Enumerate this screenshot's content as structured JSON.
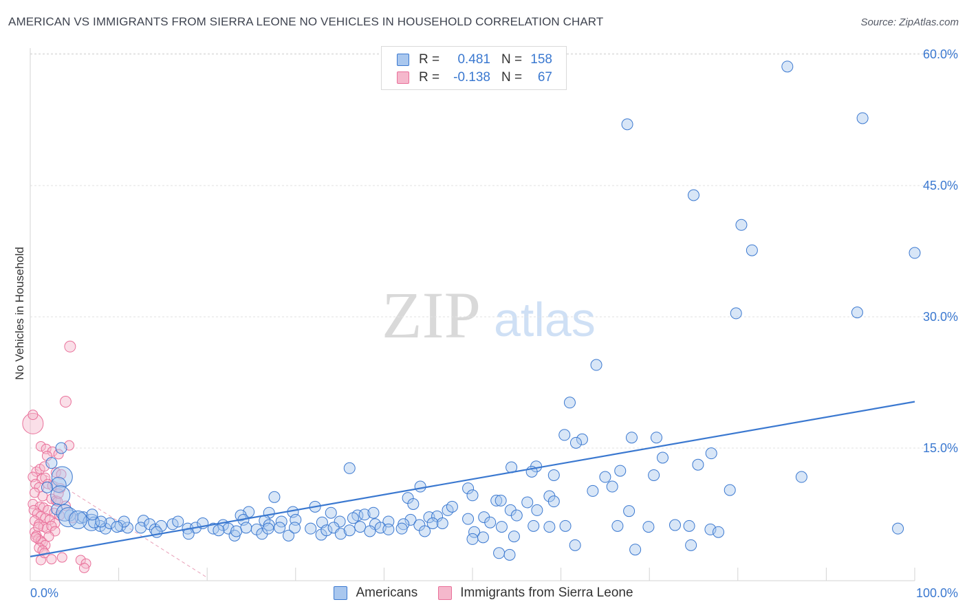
{
  "title": "AMERICAN VS IMMIGRANTS FROM SIERRA LEONE NO VEHICLES IN HOUSEHOLD CORRELATION CHART",
  "source": "Source: ZipAtlas.com",
  "watermark": {
    "zip": "ZIP",
    "atlas": "atlas"
  },
  "colors": {
    "blue": "#3a78d0",
    "blue_fill": "#a9c7ee",
    "pink": "#e96f99",
    "pink_fill": "#f5b8cc"
  },
  "legend": {
    "rows": [
      {
        "r_label": "R =",
        "r_value": "0.481",
        "n_label": "N =",
        "n_value": "158"
      },
      {
        "r_label": "R =",
        "r_value": "-0.138",
        "n_label": "N =",
        "n_value": "67"
      }
    ]
  },
  "bottom_legend": {
    "americans": "Americans",
    "sierra_leone": "Immigrants from Sierra Leone"
  },
  "chart_data": {
    "type": "scatter",
    "ylabel": "No Vehicles in Household",
    "xlabel": "",
    "x_ticks": [
      "0.0%",
      "100.0%"
    ],
    "y_ticks": [
      "15.0%",
      "30.0%",
      "45.0%",
      "60.0%"
    ],
    "xlim": [
      0,
      100
    ],
    "ylim": [
      0,
      63
    ],
    "grid": true,
    "series": [
      {
        "name": "Americans",
        "color": "#3a78d0",
        "trend": {
          "x": [
            0,
            100
          ],
          "y": [
            2.6,
            20.3
          ]
        },
        "points": [
          [
            85.6,
            58.6
          ],
          [
            67.5,
            52.0
          ],
          [
            94.1,
            52.7
          ],
          [
            75.0,
            43.9
          ],
          [
            80.4,
            40.5
          ],
          [
            81.6,
            37.6
          ],
          [
            100.0,
            37.3
          ],
          [
            79.8,
            30.4
          ],
          [
            93.5,
            30.5
          ],
          [
            64.0,
            24.5
          ],
          [
            61.0,
            20.2
          ],
          [
            60.4,
            16.5
          ],
          [
            62.4,
            16.0
          ],
          [
            61.7,
            15.6
          ],
          [
            68.0,
            16.2
          ],
          [
            70.8,
            16.2
          ],
          [
            77.0,
            14.4
          ],
          [
            71.5,
            13.9
          ],
          [
            36.1,
            12.7
          ],
          [
            54.4,
            12.8
          ],
          [
            57.2,
            12.9
          ],
          [
            56.7,
            12.3
          ],
          [
            75.5,
            13.1
          ],
          [
            65.0,
            11.7
          ],
          [
            66.7,
            12.4
          ],
          [
            59.2,
            11.9
          ],
          [
            70.5,
            11.9
          ],
          [
            87.2,
            11.7
          ],
          [
            44.1,
            10.6
          ],
          [
            49.5,
            10.4
          ],
          [
            65.8,
            10.6
          ],
          [
            63.6,
            10.1
          ],
          [
            79.1,
            10.2
          ],
          [
            27.6,
            9.4
          ],
          [
            42.7,
            9.3
          ],
          [
            43.3,
            8.6
          ],
          [
            50.0,
            9.6
          ],
          [
            52.7,
            9.0
          ],
          [
            53.2,
            9.0
          ],
          [
            58.7,
            9.5
          ],
          [
            59.2,
            8.9
          ],
          [
            56.2,
            8.8
          ],
          [
            32.2,
            8.3
          ],
          [
            47.2,
            7.9
          ],
          [
            47.7,
            8.3
          ],
          [
            54.3,
            7.9
          ],
          [
            57.3,
            7.9
          ],
          [
            67.7,
            7.8
          ],
          [
            24.7,
            7.7
          ],
          [
            23.8,
            7.3
          ],
          [
            27.0,
            7.6
          ],
          [
            29.7,
            7.7
          ],
          [
            34.0,
            7.6
          ],
          [
            37.0,
            7.3
          ],
          [
            37.8,
            7.4
          ],
          [
            38.8,
            7.6
          ],
          [
            43.0,
            6.8
          ],
          [
            45.1,
            7.1
          ],
          [
            46.0,
            7.2
          ],
          [
            49.5,
            6.9
          ],
          [
            51.3,
            7.1
          ],
          [
            55.0,
            7.3
          ],
          [
            24.1,
            6.8
          ],
          [
            26.5,
            6.7
          ],
          [
            27.0,
            6.2
          ],
          [
            28.4,
            6.6
          ],
          [
            30.0,
            6.8
          ],
          [
            33.0,
            6.5
          ],
          [
            35.0,
            6.6
          ],
          [
            36.5,
            7.0
          ],
          [
            39.0,
            6.3
          ],
          [
            40.5,
            6.6
          ],
          [
            42.2,
            6.3
          ],
          [
            44.0,
            6.2
          ],
          [
            45.5,
            6.4
          ],
          [
            46.6,
            6.4
          ],
          [
            52.0,
            6.5
          ],
          [
            53.3,
            6.0
          ],
          [
            56.9,
            6.1
          ],
          [
            58.7,
            6.0
          ],
          [
            60.5,
            6.1
          ],
          [
            66.4,
            6.1
          ],
          [
            69.9,
            6.0
          ],
          [
            72.9,
            6.2
          ],
          [
            74.5,
            6.1
          ],
          [
            76.9,
            5.7
          ],
          [
            77.8,
            5.4
          ],
          [
            98.1,
            5.8
          ],
          [
            4.5,
            7.3
          ],
          [
            5.7,
            7.0
          ],
          [
            6.0,
            7.1
          ],
          [
            6.9,
            6.5
          ],
          [
            7.9,
            6.1
          ],
          [
            8.5,
            5.8
          ],
          [
            9.0,
            6.4
          ],
          [
            10.2,
            6.1
          ],
          [
            11.0,
            5.9
          ],
          [
            10.6,
            6.6
          ],
          [
            12.8,
            6.7
          ],
          [
            12.5,
            5.9
          ],
          [
            13.5,
            6.3
          ],
          [
            14.1,
            5.7
          ],
          [
            14.8,
            6.1
          ],
          [
            16.1,
            6.3
          ],
          [
            17.8,
            5.8
          ],
          [
            16.7,
            6.6
          ],
          [
            18.7,
            5.9
          ],
          [
            19.5,
            6.4
          ],
          [
            20.7,
            5.8
          ],
          [
            21.8,
            6.2
          ],
          [
            22.4,
            5.8
          ],
          [
            23.1,
            5.0
          ],
          [
            24.4,
            5.9
          ],
          [
            25.6,
            5.7
          ],
          [
            26.2,
            5.2
          ],
          [
            26.9,
            5.8
          ],
          [
            28.2,
            5.9
          ],
          [
            29.2,
            5.0
          ],
          [
            29.9,
            5.9
          ],
          [
            31.7,
            5.8
          ],
          [
            32.9,
            5.1
          ],
          [
            33.5,
            5.6
          ],
          [
            34.3,
            5.9
          ],
          [
            35.1,
            5.2
          ],
          [
            36.1,
            5.6
          ],
          [
            37.3,
            6.0
          ],
          [
            38.4,
            5.5
          ],
          [
            39.6,
            5.9
          ],
          [
            40.5,
            5.7
          ],
          [
            42.0,
            5.8
          ],
          [
            44.6,
            5.5
          ],
          [
            50.2,
            5.4
          ],
          [
            50.0,
            4.6
          ],
          [
            51.2,
            4.8
          ],
          [
            54.7,
            4.9
          ],
          [
            17.9,
            5.2
          ],
          [
            14.3,
            5.4
          ],
          [
            21.3,
            5.6
          ],
          [
            23.3,
            5.5
          ],
          [
            9.8,
            6.0
          ],
          [
            3.5,
            15.0
          ],
          [
            3.6,
            11.7
          ],
          [
            3.2,
            10.8
          ],
          [
            3.4,
            9.6
          ],
          [
            3.0,
            8.0
          ],
          [
            3.9,
            7.6
          ],
          [
            4.3,
            7.1
          ],
          [
            2.4,
            13.3
          ],
          [
            1.9,
            10.5
          ],
          [
            7.2,
            6.5
          ],
          [
            53.0,
            3.0
          ],
          [
            61.6,
            3.9
          ],
          [
            68.4,
            3.4
          ],
          [
            74.7,
            3.9
          ],
          [
            54.2,
            2.8
          ],
          [
            7.0,
            7.4
          ],
          [
            8.0,
            6.6
          ],
          [
            5.4,
            6.8
          ]
        ],
        "sizes": {
          "3.5,15.0": 16,
          "3.6,11.7": 15,
          "3.2,10.8": 11,
          "3.4,9.6": 14,
          "3.0,8.0": 9,
          "3.9,7.6": 12,
          "4.3,7.1": 14,
          "5.4,6.8": 13,
          "7.0,7.4": 11,
          "8.0,6.6": 10,
          "6.9,6.5": 12
        }
      },
      {
        "name": "Immigrants from Sierra Leone",
        "color": "#e96f99",
        "trend": {
          "x": [
            0,
            20
          ],
          "y": [
            13.0,
            0.2
          ]
        },
        "points": [
          [
            0.3,
            17.8
          ],
          [
            0.3,
            18.8
          ],
          [
            4.5,
            26.6
          ],
          [
            4.0,
            20.3
          ],
          [
            1.2,
            15.2
          ],
          [
            1.8,
            14.9
          ],
          [
            2.5,
            14.6
          ],
          [
            4.4,
            15.3
          ],
          [
            3.2,
            14.3
          ],
          [
            1.9,
            14.1
          ],
          [
            0.7,
            12.3
          ],
          [
            1.1,
            12.6
          ],
          [
            1.6,
            12.9
          ],
          [
            2.9,
            12.2
          ],
          [
            3.5,
            12.0
          ],
          [
            0.3,
            11.7
          ],
          [
            1.3,
            11.5
          ],
          [
            1.7,
            11.6
          ],
          [
            0.6,
            10.9
          ],
          [
            1.0,
            10.5
          ],
          [
            2.0,
            10.9
          ],
          [
            2.5,
            10.7
          ],
          [
            3.4,
            10.4
          ],
          [
            0.5,
            9.9
          ],
          [
            1.4,
            9.5
          ],
          [
            2.4,
            9.2
          ],
          [
            2.9,
            9.0
          ],
          [
            3.1,
            8.9
          ],
          [
            0.3,
            8.6
          ],
          [
            1.1,
            8.3
          ],
          [
            1.5,
            8.2
          ],
          [
            2.0,
            7.9
          ],
          [
            2.7,
            7.6
          ],
          [
            3.3,
            7.3
          ],
          [
            0.4,
            7.9
          ],
          [
            0.8,
            7.5
          ],
          [
            1.2,
            7.2
          ],
          [
            1.7,
            7.0
          ],
          [
            2.2,
            6.8
          ],
          [
            2.8,
            6.4
          ],
          [
            0.5,
            6.7
          ],
          [
            1.0,
            6.3
          ],
          [
            1.5,
            6.0
          ],
          [
            1.9,
            5.8
          ],
          [
            2.4,
            6.1
          ],
          [
            2.8,
            5.5
          ],
          [
            0.5,
            5.4
          ],
          [
            0.7,
            5.0
          ],
          [
            0.9,
            4.6
          ],
          [
            1.2,
            4.4
          ],
          [
            1.4,
            4.2
          ],
          [
            1.7,
            3.9
          ],
          [
            1.0,
            3.6
          ],
          [
            1.4,
            3.3
          ],
          [
            0.6,
            4.8
          ],
          [
            2.4,
            2.3
          ],
          [
            3.6,
            2.5
          ],
          [
            5.7,
            2.2
          ],
          [
            6.3,
            1.8
          ],
          [
            1.2,
            2.2
          ],
          [
            6.1,
            1.3
          ],
          [
            3.2,
            9.8
          ],
          [
            4.0,
            8.4
          ],
          [
            4.8,
            7.0
          ],
          [
            2.1,
            4.9
          ],
          [
            0.9,
            6.0
          ],
          [
            1.6,
            3.0
          ]
        ]
      }
    ]
  }
}
